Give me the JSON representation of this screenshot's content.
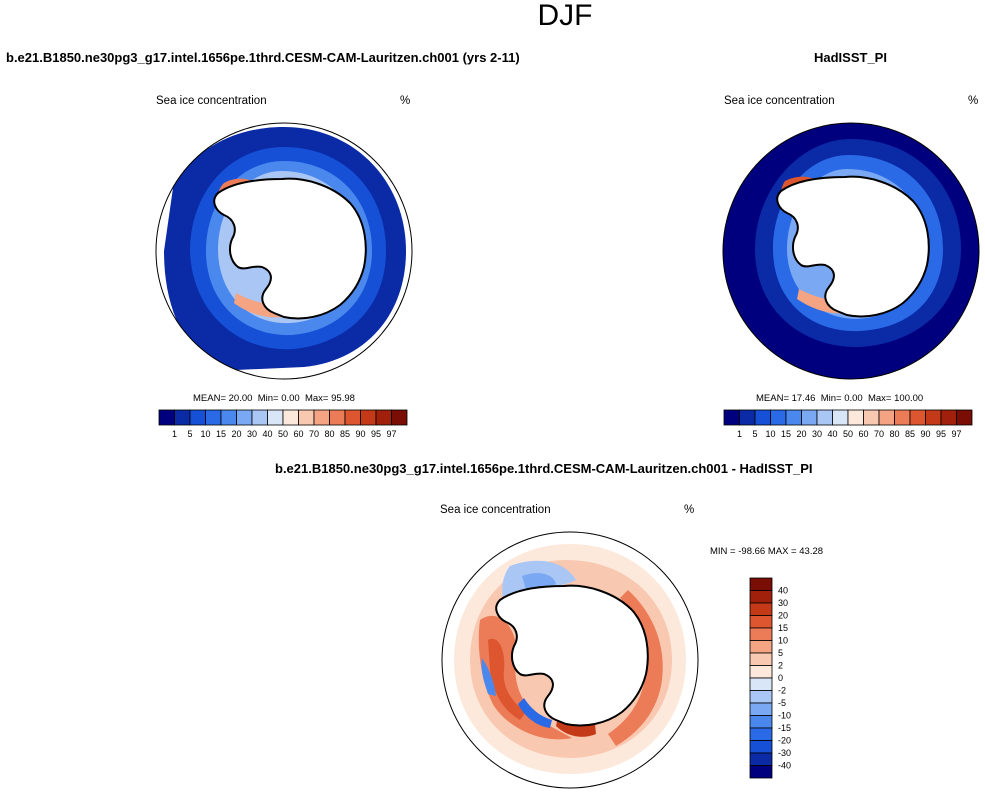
{
  "page": {
    "title": "DJF"
  },
  "panels": {
    "model": {
      "case_label": "b.e21.B1850.ne30pg3_g17.intel.1656pe.1thrd.CESM-CAM-Lauritzen.ch001 (yrs 2-11)",
      "variable": "Sea ice concentration",
      "units": "%",
      "stats": {
        "mean_label": "MEAN=",
        "mean": "20.00",
        "min_label": "Min=",
        "min": "0.00",
        "max_label": "Max=",
        "max": "95.98"
      }
    },
    "obs": {
      "case_label": "HadISST_PI",
      "variable": "Sea ice concentration",
      "units": "%",
      "stats": {
        "mean_label": "MEAN=",
        "mean": "17.46",
        "min_label": "Min=",
        "min": "0.00",
        "max_label": "Max=",
        "max": "100.00"
      }
    },
    "diff": {
      "case_label": "b.e21.B1850.ne30pg3_g17.intel.1656pe.1thrd.CESM-CAM-Lauritzen.ch001 - HadISST_PI",
      "variable": "Sea ice concentration",
      "units": "%",
      "stats": {
        "min_label": "MIN =",
        "min": "-98.66",
        "max_label": "MAX =",
        "max": "43.28"
      }
    }
  },
  "chart_data": [
    {
      "type": "map",
      "name": "model",
      "projection": "south-polar-stereographic",
      "colorbar": {
        "orientation": "horizontal",
        "levels": [
          "1",
          "5",
          "10",
          "15",
          "20",
          "30",
          "40",
          "50",
          "60",
          "70",
          "80",
          "85",
          "90",
          "95",
          "97"
        ],
        "colors": [
          "#00007f",
          "#0a2aa6",
          "#1550d6",
          "#2a6ae6",
          "#4a88ee",
          "#7aa8f2",
          "#a9c6f5",
          "#d8e6f7",
          "#fde9dc",
          "#f9c8b0",
          "#f4a383",
          "#ec7b58",
          "#de5630",
          "#c43a18",
          "#a0200c",
          "#7a0e06"
        ]
      }
    },
    {
      "type": "map",
      "name": "obs",
      "projection": "south-polar-stereographic",
      "colorbar": {
        "orientation": "horizontal",
        "levels": [
          "1",
          "5",
          "10",
          "15",
          "20",
          "30",
          "40",
          "50",
          "60",
          "70",
          "80",
          "85",
          "90",
          "95",
          "97"
        ],
        "colors": [
          "#00007f",
          "#0a2aa6",
          "#1550d6",
          "#2a6ae6",
          "#4a88ee",
          "#7aa8f2",
          "#a9c6f5",
          "#d8e6f7",
          "#fde9dc",
          "#f9c8b0",
          "#f4a383",
          "#ec7b58",
          "#de5630",
          "#c43a18",
          "#a0200c",
          "#7a0e06"
        ]
      }
    },
    {
      "type": "map",
      "name": "diff",
      "projection": "south-polar-stereographic",
      "colorbar": {
        "orientation": "vertical",
        "levels": [
          "40",
          "30",
          "20",
          "15",
          "10",
          "5",
          "2",
          "0",
          "-2",
          "-5",
          "-10",
          "-15",
          "-20",
          "-30",
          "-40"
        ],
        "colors": [
          "#7a0e06",
          "#a0200c",
          "#c43a18",
          "#de5630",
          "#ec7b58",
          "#f4a383",
          "#f9c8b0",
          "#fde9dc",
          "#d8e6f7",
          "#a9c6f5",
          "#7aa8f2",
          "#4a88ee",
          "#2a6ae6",
          "#1550d6",
          "#0a2aa6",
          "#00007f"
        ]
      }
    }
  ]
}
